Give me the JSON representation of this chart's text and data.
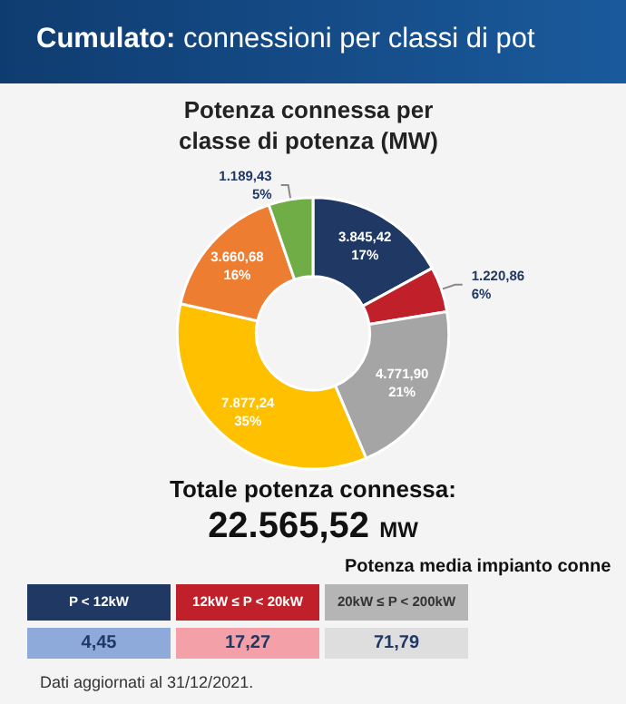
{
  "chart_data": {
    "type": "donut",
    "title": "Cumulato: connessioni per classi di pot",
    "subtitle": "Potenza connessa per classe di potenza (MW)",
    "categories": [
      null,
      null,
      null,
      null,
      null,
      null
    ],
    "values": [
      3845.42,
      1220.86,
      4771.9,
      7877.24,
      3660.68,
      1189.43
    ],
    "colors": [
      "#1f3864",
      "#c0202a",
      "#a5a5a5",
      "#ffc000",
      "#ed7d31",
      "#70ad47"
    ],
    "value_labels": [
      "3.845,42\n17%",
      "1.220,86\n6%",
      "4.771,90\n21%",
      "7.877,24\n35%",
      "3.660,68\n16%",
      "1.189,43\n5%"
    ],
    "annotations": [
      "Totale potenza connessa:",
      "22.565,52 MW",
      "Potenza media impianto conne",
      "P < 12kW",
      "12kW ≤ P < 20kW",
      "20kW ≤ P < 200kW",
      "4,45",
      "17,27",
      "71,79",
      "Dati aggiornati al 31/12/2021."
    ]
  }
}
